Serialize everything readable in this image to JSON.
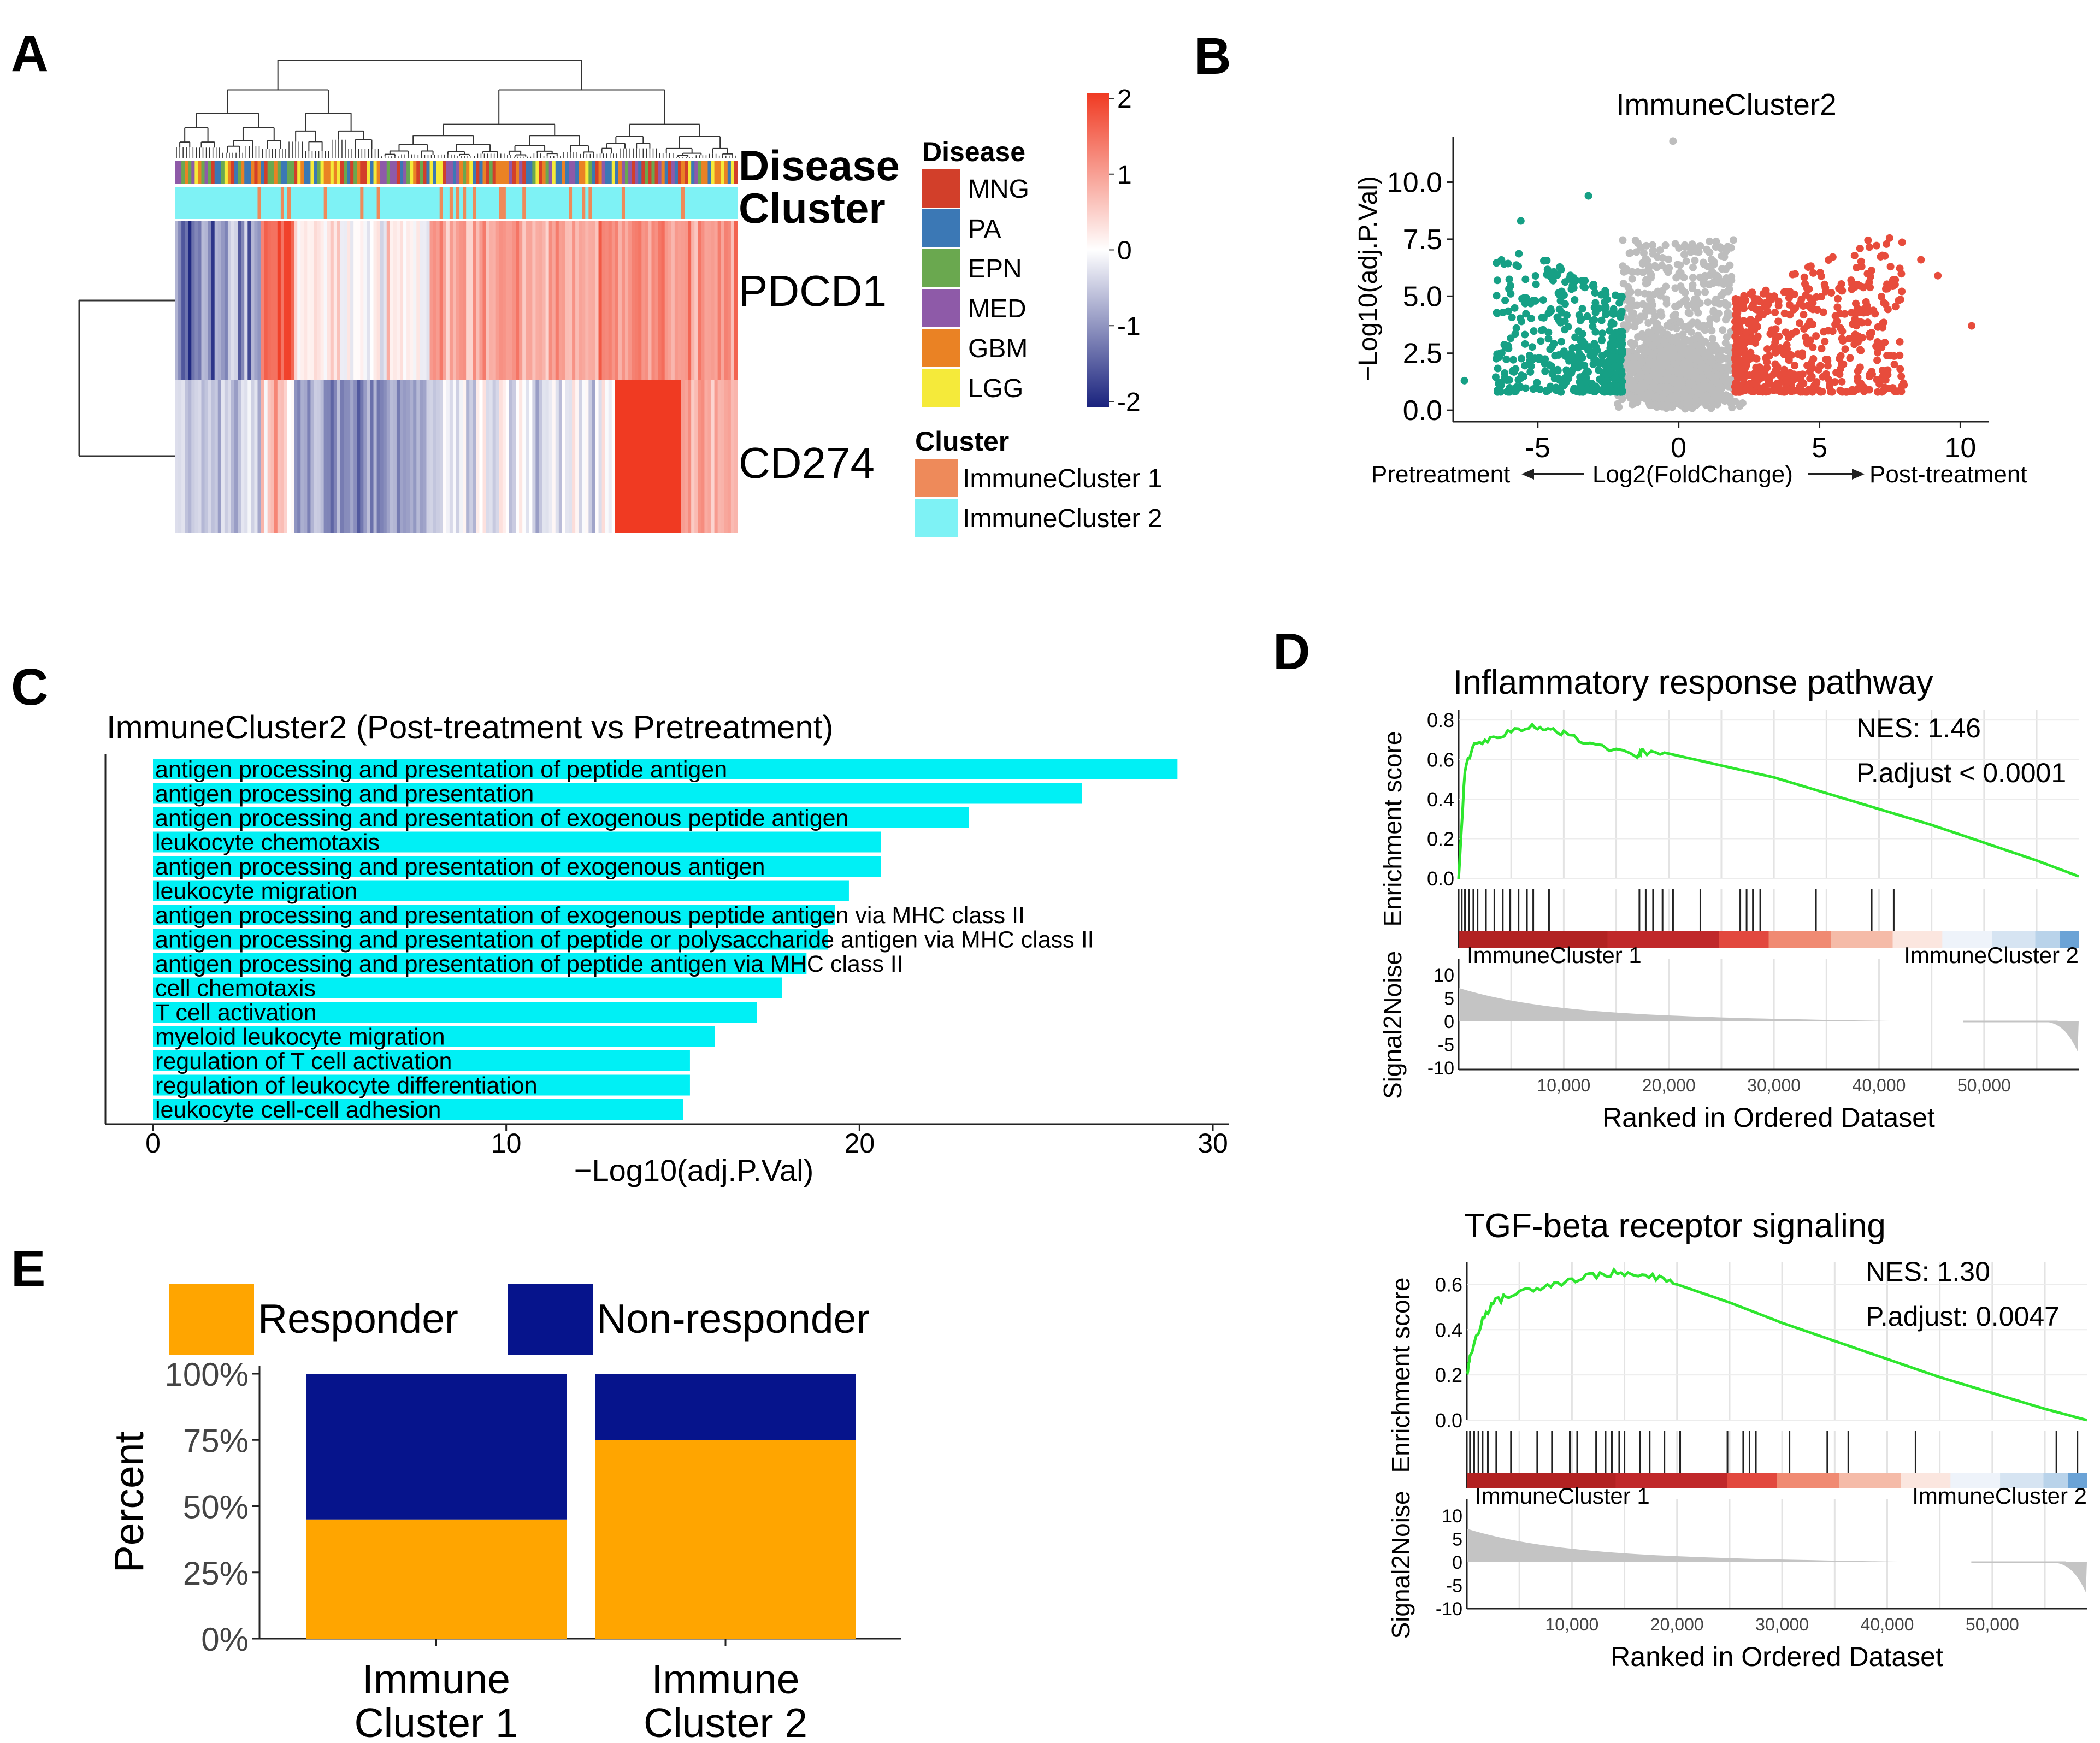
{
  "panels": {
    "A": "A",
    "B": "B",
    "C": "C",
    "D": "D",
    "E": "E"
  },
  "chart_data": [
    {
      "panel": "A",
      "type": "heatmap",
      "rows": [
        "PDCD1",
        "CD274"
      ],
      "annotation_rows": [
        "Disease",
        "Cluster"
      ],
      "colorbar": {
        "min": -2,
        "max": 2,
        "ticks": [
          "2",
          "1",
          "0",
          "-1",
          "-2"
        ],
        "colors": [
          "#1a237e",
          "#ffffff",
          "#f03a22"
        ]
      },
      "legend_disease": {
        "title": "Disease",
        "items": [
          {
            "label": "MNG",
            "color": "#d23f2a"
          },
          {
            "label": "PA",
            "color": "#3b78b5"
          },
          {
            "label": "EPN",
            "color": "#6aa84f"
          },
          {
            "label": "MED",
            "color": "#8e5aa8"
          },
          {
            "label": "GBM",
            "color": "#ea8224"
          },
          {
            "label": "LGG",
            "color": "#f5ea3a"
          }
        ]
      },
      "legend_cluster": {
        "title": "Cluster",
        "items": [
          {
            "label": "ImmuneCluster 1",
            "color": "#ee8a5a"
          },
          {
            "label": "ImmuneCluster 2",
            "color": "#7ef2f5"
          }
        ]
      }
    },
    {
      "panel": "B",
      "type": "scatter",
      "title": "ImmuneCluster2",
      "xlabel": "Log2(FoldChange)",
      "ylabel": "−Log10(adj.P.Val)",
      "x_left_label": "Pretreatment",
      "x_right_label": "Post-treatment",
      "xlim": [
        -8,
        11
      ],
      "ylim": [
        -0.5,
        12
      ],
      "xticks": [
        -5,
        0,
        5,
        10
      ],
      "yticks": [
        "0.0",
        "2.5",
        "5.0",
        "7.5",
        "10.0"
      ],
      "colors": {
        "down": "#16a085",
        "ns": "#bdbdbd",
        "up": "#e74c3c"
      },
      "thresholds": {
        "fc": 2
      }
    },
    {
      "panel": "C",
      "type": "bar",
      "title": "ImmuneCluster2 (Post-treatment vs Pretreatment)",
      "xlabel": "−Log10(adj.P.Val)",
      "xlim": [
        0,
        30
      ],
      "xticks": [
        "0",
        "10",
        "20",
        "30"
      ],
      "bar_color": "#00f0f5",
      "categories": [
        "antigen processing and presentation of peptide antigen",
        "antigen processing and presentation",
        "antigen processing and presentation of exogenous peptide antigen",
        "leukocyte chemotaxis",
        "antigen processing and presentation of exogenous antigen",
        "leukocyte migration",
        "antigen processing and presentation of exogenous peptide antigen via MHC class II",
        "antigen processing and presentation of peptide or polysaccharide antigen via MHC class II",
        "antigen processing and presentation of peptide antigen via MHC class II",
        "cell chemotaxis",
        "T cell activation",
        "myeloid leukocyte migration",
        "regulation of T cell activation",
        "regulation of leukocyte differentiation",
        "leukocyte cell-cell adhesion"
      ],
      "values": [
        29.0,
        26.3,
        23.1,
        20.6,
        20.6,
        19.7,
        19.3,
        19.1,
        18.5,
        17.8,
        17.1,
        15.9,
        15.2,
        15.2,
        15.0
      ]
    },
    {
      "panel": "D1",
      "type": "line",
      "title": "Inflammatory response pathway",
      "ylabel": "Enrichment score",
      "ylabel2": "Signal2Noise",
      "xlabel": "Ranked in Ordered Dataset",
      "nes": "NES: 1.46",
      "padj": "P.adjust < 0.0001",
      "left_label": "ImmuneCluster 1",
      "right_label": "ImmuneCluster 2",
      "yticks": [
        "0.8",
        "0.6",
        "0.4",
        "0.2",
        "0.0"
      ],
      "s2n_ticks": [
        "10",
        "5",
        "0",
        "-5",
        "-10"
      ],
      "xticks": [
        "10,000",
        "20,000",
        "30,000",
        "40,000",
        "50,000"
      ],
      "x": [
        0,
        600,
        1500,
        3000,
        5000,
        7000,
        8500,
        10000,
        13000,
        17000,
        17500,
        20000,
        25000,
        30000,
        35000,
        40000,
        45000,
        50000,
        55000,
        59000
      ],
      "y": [
        0.0,
        0.55,
        0.68,
        0.7,
        0.74,
        0.77,
        0.76,
        0.73,
        0.67,
        0.62,
        0.64,
        0.63,
        0.57,
        0.51,
        0.43,
        0.35,
        0.27,
        0.18,
        0.09,
        0.01
      ]
    },
    {
      "panel": "D2",
      "type": "line",
      "title": "TGF-beta receptor signaling",
      "ylabel": "Enrichment score",
      "ylabel2": "Signal2Noise",
      "xlabel": "Ranked in Ordered Dataset",
      "nes": "NES: 1.30",
      "padj": "P.adjust: 0.0047",
      "left_label": "ImmuneCluster 1",
      "right_label": "ImmuneCluster 2",
      "yticks": [
        "0.6",
        "0.4",
        "0.2",
        "0.0"
      ],
      "s2n_ticks": [
        "10",
        "5",
        "0",
        "-5",
        "-10"
      ],
      "xticks": [
        "10,000",
        "20,000",
        "30,000",
        "40,000",
        "50,000"
      ],
      "x": [
        0,
        300,
        1500,
        2500,
        4000,
        6000,
        8000,
        10000,
        12000,
        14000,
        16000,
        18000,
        20000,
        25000,
        30000,
        35000,
        40000,
        45000,
        50000,
        55000,
        59000
      ],
      "y": [
        0.2,
        0.28,
        0.45,
        0.52,
        0.55,
        0.58,
        0.6,
        0.62,
        0.64,
        0.65,
        0.64,
        0.63,
        0.6,
        0.52,
        0.43,
        0.35,
        0.27,
        0.19,
        0.12,
        0.05,
        0.0
      ]
    },
    {
      "panel": "E",
      "type": "bar",
      "stacked": true,
      "ylabel": "Percent",
      "yticks": [
        "0%",
        "25%",
        "50%",
        "75%",
        "100%"
      ],
      "categories": [
        [
          "Immune",
          "Cluster 1"
        ],
        [
          "Immune",
          "Cluster 2"
        ]
      ],
      "series": [
        {
          "name": "Responder",
          "color": "#ffa500",
          "values": [
            45,
            75
          ]
        },
        {
          "name": "Non-responder",
          "color": "#06148c",
          "values": [
            55,
            25
          ]
        }
      ]
    }
  ]
}
